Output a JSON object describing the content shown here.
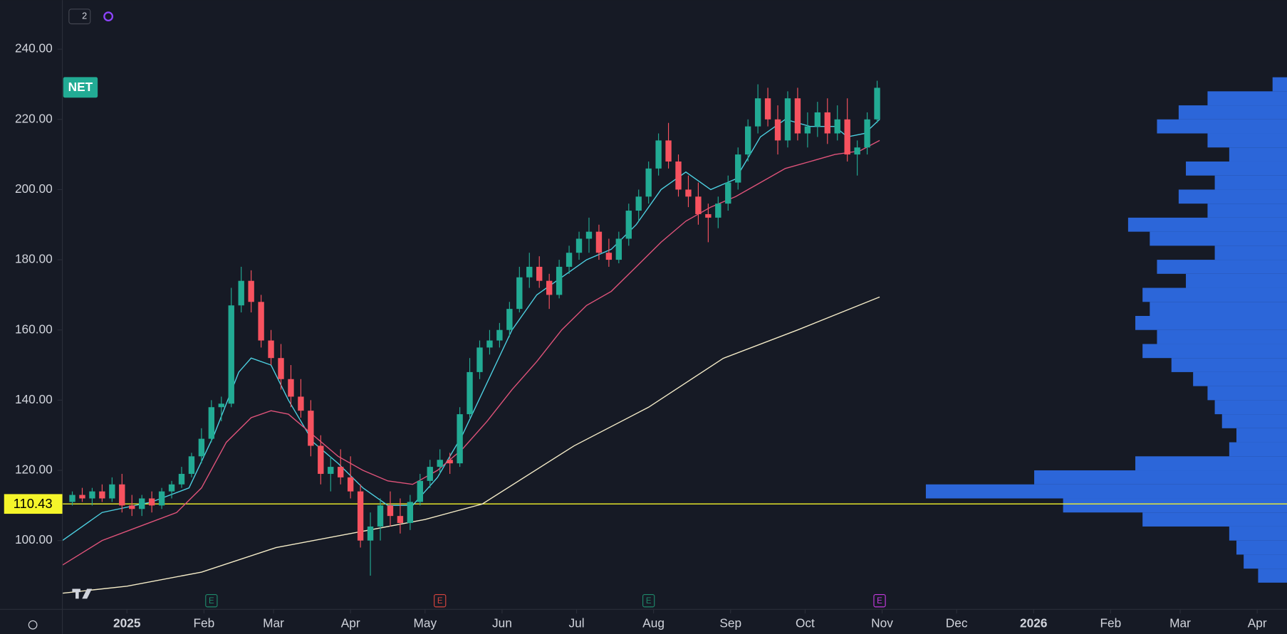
{
  "chart_data": {
    "type": "candlestick",
    "symbol": "NET",
    "interval_badge": "2",
    "xlim": [
      -26,
      467
    ],
    "ylim": [
      80.4,
      254
    ],
    "yticks": [
      {
        "value": 100,
        "label": "100.00"
      },
      {
        "value": 120,
        "label": "120.00"
      },
      {
        "value": 140,
        "label": "140.00"
      },
      {
        "value": 160,
        "label": "160.00"
      },
      {
        "value": 180,
        "label": "180.00"
      },
      {
        "value": 200,
        "label": "200.00"
      },
      {
        "value": 220,
        "label": "220.00"
      },
      {
        "value": 240,
        "label": "240.00"
      }
    ],
    "xticks": [
      {
        "value": 0,
        "label": "2025"
      },
      {
        "value": 31,
        "label": "Feb"
      },
      {
        "value": 59,
        "label": "Mar"
      },
      {
        "value": 90,
        "label": "Apr"
      },
      {
        "value": 120,
        "label": "May"
      },
      {
        "value": 151,
        "label": "Jun"
      },
      {
        "value": 181,
        "label": "Jul"
      },
      {
        "value": 212,
        "label": "Aug"
      },
      {
        "value": 243,
        "label": "Sep"
      },
      {
        "value": 273,
        "label": "Oct"
      },
      {
        "value": 304,
        "label": "Nov"
      },
      {
        "value": 334,
        "label": "Dec"
      },
      {
        "value": 365,
        "label": "2026"
      },
      {
        "value": 396,
        "label": "Feb"
      },
      {
        "value": 424,
        "label": "Mar"
      },
      {
        "value": 455,
        "label": "Apr"
      }
    ],
    "up_color": "#22ab94",
    "down_color": "#f7525f",
    "x": [
      -22,
      -18,
      -14,
      -10,
      -6,
      -2,
      2,
      6,
      10,
      14,
      18,
      22,
      26,
      30,
      34,
      38,
      42,
      46,
      50,
      54,
      58,
      62,
      66,
      70,
      74,
      78,
      82,
      86,
      90,
      94,
      98,
      102,
      106,
      110,
      114,
      118,
      122,
      126,
      130,
      134,
      138,
      142,
      146,
      150,
      154,
      158,
      162,
      166,
      170,
      174,
      178,
      182,
      186,
      190,
      194,
      198,
      202,
      206,
      210,
      214,
      218,
      222,
      226,
      230,
      234,
      238,
      242,
      246,
      250,
      254,
      258,
      262,
      266,
      270,
      274,
      278,
      282,
      286,
      290,
      294,
      298,
      302
    ],
    "open": [
      111,
      113,
      112,
      114,
      112,
      116,
      110,
      109,
      112,
      110,
      114,
      116,
      119,
      124,
      129,
      138,
      139,
      167,
      174,
      168,
      157,
      152,
      146,
      141,
      137,
      127,
      119,
      121,
      118,
      114,
      100,
      104,
      110,
      107,
      105,
      111,
      117,
      121,
      123,
      122,
      136,
      148,
      155,
      157,
      160,
      166,
      175,
      178,
      174,
      170,
      178,
      182,
      186,
      188,
      182,
      180,
      186,
      194,
      198,
      206,
      214,
      208,
      200,
      198,
      193,
      192,
      196,
      202,
      210,
      218,
      226,
      220,
      214,
      226,
      216,
      218,
      222,
      216,
      220,
      210,
      212,
      220
    ],
    "high": [
      114,
      115,
      115,
      116,
      118,
      119,
      113,
      113,
      114,
      115,
      117,
      121,
      125,
      132,
      140,
      141,
      172,
      178,
      177,
      170,
      160,
      156,
      150,
      146,
      140,
      130,
      124,
      126,
      124,
      116,
      108,
      112,
      114,
      112,
      113,
      119,
      123,
      126,
      125,
      138,
      152,
      157,
      160,
      162,
      168,
      178,
      182,
      181,
      176,
      180,
      184,
      188,
      192,
      190,
      186,
      188,
      196,
      200,
      208,
      216,
      219,
      210,
      204,
      202,
      196,
      198,
      204,
      212,
      220,
      230,
      229,
      224,
      228,
      229,
      222,
      225,
      226,
      224,
      226,
      214,
      222,
      231
    ],
    "low": [
      110,
      111,
      110,
      111,
      111,
      108,
      107,
      107,
      108,
      109,
      112,
      115,
      118,
      122,
      128,
      134,
      138,
      165,
      165,
      155,
      150,
      143,
      138,
      135,
      124,
      116,
      114,
      116,
      112,
      98,
      90,
      100,
      104,
      102,
      103,
      110,
      115,
      119,
      119,
      121,
      135,
      146,
      153,
      155,
      158,
      165,
      172,
      172,
      166,
      169,
      176,
      180,
      182,
      180,
      178,
      179,
      184,
      191,
      196,
      204,
      206,
      198,
      195,
      190,
      185,
      189,
      194,
      200,
      208,
      216,
      218,
      210,
      212,
      214,
      212,
      215,
      213,
      214,
      208,
      204,
      210,
      219
    ],
    "close": [
      113,
      112,
      114,
      112,
      116,
      110,
      109,
      112,
      110,
      114,
      116,
      119,
      124,
      129,
      138,
      139,
      167,
      174,
      168,
      157,
      152,
      146,
      141,
      137,
      127,
      119,
      121,
      118,
      114,
      100,
      104,
      110,
      107,
      105,
      111,
      117,
      121,
      123,
      122,
      136,
      148,
      155,
      157,
      160,
      166,
      175,
      178,
      174,
      170,
      178,
      182,
      186,
      188,
      182,
      180,
      186,
      194,
      198,
      206,
      214,
      208,
      200,
      198,
      193,
      192,
      196,
      202,
      210,
      218,
      226,
      220,
      214,
      226,
      216,
      218,
      222,
      216,
      220,
      210,
      212,
      220,
      229
    ],
    "moving_averages": [
      {
        "color": "#4dd0e1",
        "x": [
          -26,
          -10,
          10,
          25,
          35,
          45,
          50,
          58,
          65,
          75,
          85,
          95,
          105,
          115,
          125,
          135,
          145,
          155,
          165,
          175,
          185,
          195,
          205,
          215,
          225,
          235,
          245,
          255,
          265,
          275,
          285,
          290,
          297,
          303
        ],
        "values": [
          100,
          108,
          111,
          115,
          130,
          148,
          152,
          150,
          140,
          128,
          122,
          115,
          110,
          110,
          118,
          130,
          145,
          160,
          170,
          175,
          180,
          183,
          190,
          200,
          205,
          200,
          203,
          215,
          220,
          218,
          218,
          215,
          216,
          220
        ]
      },
      {
        "color": "#e0537a",
        "x": [
          -26,
          -10,
          5,
          20,
          30,
          40,
          50,
          58,
          65,
          75,
          85,
          95,
          105,
          115,
          125,
          135,
          145,
          155,
          165,
          175,
          185,
          195,
          205,
          215,
          225,
          235,
          245,
          255,
          265,
          275,
          285,
          295,
          303
        ],
        "values": [
          93,
          100,
          104,
          108,
          115,
          128,
          135,
          137,
          136,
          130,
          124,
          120,
          117,
          116,
          120,
          126,
          134,
          143,
          151,
          160,
          167,
          171,
          178,
          185,
          191,
          195,
          198,
          202,
          206,
          208,
          210,
          211,
          214
        ]
      },
      {
        "color": "#f5ecc8",
        "x": [
          -26,
          0,
          30,
          60,
          90,
          120,
          143,
          180,
          210,
          240,
          270,
          303
        ],
        "values": [
          85,
          87,
          91,
          98,
          102,
          106,
          110.4,
          127,
          138,
          151.9,
          160,
          169.4
        ]
      }
    ],
    "hline": {
      "value": 110.43,
      "color": "#f5f52a"
    },
    "events": [
      {
        "x": 34,
        "label": "E",
        "color": "#1f8a6b"
      },
      {
        "x": 126,
        "label": "E",
        "color": "#d9453f"
      },
      {
        "x": 210,
        "label": "E",
        "color": "#1f8a6b"
      },
      {
        "x": 303,
        "label": "E",
        "color": "#c53be0"
      }
    ],
    "volume_profile": {
      "color": "#2f6fed",
      "prices": [
        90,
        94,
        98,
        102,
        106,
        110,
        114,
        118,
        122,
        126,
        130,
        134,
        138,
        142,
        146,
        150,
        154,
        158,
        162,
        166,
        170,
        174,
        178,
        182,
        186,
        190,
        194,
        198,
        202,
        206,
        210,
        214,
        218,
        222,
        226,
        230
      ],
      "volumes": [
        8,
        12,
        14,
        16,
        40,
        62,
        100,
        70,
        42,
        16,
        14,
        18,
        20,
        22,
        26,
        32,
        40,
        36,
        42,
        38,
        40,
        28,
        36,
        20,
        38,
        44,
        22,
        30,
        20,
        28,
        16,
        22,
        36,
        30,
        22,
        4
      ]
    }
  }
}
